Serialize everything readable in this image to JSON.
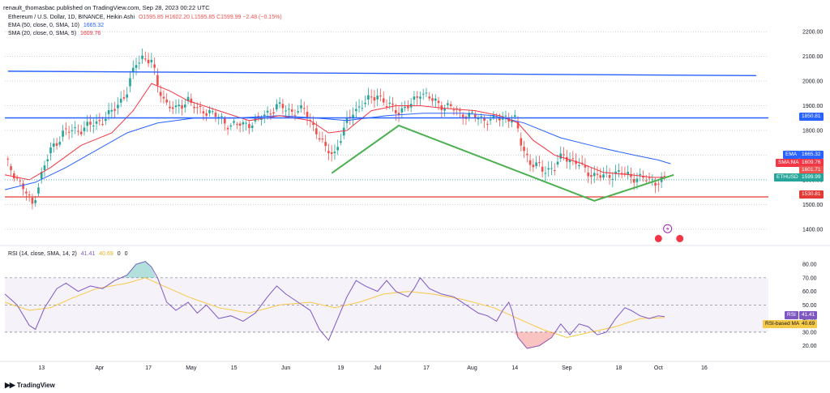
{
  "header": {
    "publisher": "renault_thomasbac published on TradingView.com, Sep 28, 2023 00:22 UTC"
  },
  "legend": {
    "main": {
      "title": "Ethereum / U.S. Dollar, 1D, BINANCE, Heikin Ashi",
      "values": "O1595.85  H1602.20  L1595.85  C1599.99  −2.48 (−0.15%)"
    },
    "ema": {
      "label": "EMA (50, close, 0, SMA, 10)",
      "value": "1665.32"
    },
    "sma": {
      "label": "SMA (20, close, 0, SMA, 5)",
      "value": "1609.76"
    },
    "rsi": {
      "label": "RSI (14, close, SMA, 14, 2)",
      "v1": "41.41",
      "v2": "40.69",
      "v3": "0",
      "v4": "0"
    }
  },
  "tags": {
    "ema_name": "EMA",
    "ema_value": "1665.32",
    "sma_name": "SMA:MA",
    "sma_value": "1609.76",
    "plain_value": "1601.71",
    "eth_name": "ETHUSD",
    "eth_value": "1599.99",
    "res_value": "1850.81",
    "sup_value": "1530.81",
    "rsi_name": "RSI",
    "rsi_value": "41.41",
    "rsima_name": "RSI-based MA",
    "rsima_value": "40.69"
  },
  "colors": {
    "up": "#26a69a",
    "down": "#ef5350",
    "ema": "#2962ff",
    "sma": "#f23645",
    "rsi": "#7e57c2",
    "rsi_ma": "#f7c948",
    "channel": "#2962ff",
    "support": "#e53935",
    "pattern": "#4caf50"
  },
  "footer": {
    "brand": "TradingView"
  },
  "chart_data": [
    {
      "type": "candlestick",
      "title": "Ethereum / U.S. Dollar, 1D, BINANCE, Heikin Ashi",
      "ylim": [
        1360,
        2230
      ],
      "y_ticks": [
        1400,
        1500,
        1600,
        1700,
        1800,
        1900,
        2000,
        2100,
        2200
      ],
      "x_ticks": [
        {
          "label": "13",
          "day": 12
        },
        {
          "label": "Apr",
          "day": 31
        },
        {
          "label": "17",
          "day": 47
        },
        {
          "label": "May",
          "day": 61
        },
        {
          "label": "15",
          "day": 75
        },
        {
          "label": "Jun",
          "day": 92
        },
        {
          "label": "19",
          "day": 110
        },
        {
          "label": "Jul",
          "day": 122
        },
        {
          "label": "17",
          "day": 138
        },
        {
          "label": "Aug",
          "day": 153
        },
        {
          "label": "14",
          "day": 167
        },
        {
          "label": "Sep",
          "day": 184
        },
        {
          "label": "18",
          "day": 201
        },
        {
          "label": "Oct",
          "day": 214
        },
        {
          "label": "16",
          "day": 229
        }
      ],
      "x_range": [
        0,
        250
      ],
      "keypoints": [
        [
          0,
          1680
        ],
        [
          4,
          1610
        ],
        [
          9,
          1500
        ],
        [
          12,
          1620
        ],
        [
          15,
          1720
        ],
        [
          19,
          1790
        ],
        [
          26,
          1810
        ],
        [
          30,
          1830
        ],
        [
          35,
          1870
        ],
        [
          40,
          1960
        ],
        [
          43,
          2070
        ],
        [
          45,
          2100
        ],
        [
          48,
          2080
        ],
        [
          50,
          1980
        ],
        [
          53,
          1910
        ],
        [
          56,
          1880
        ],
        [
          60,
          1930
        ],
        [
          63,
          1880
        ],
        [
          67,
          1880
        ],
        [
          72,
          1830
        ],
        [
          78,
          1820
        ],
        [
          84,
          1850
        ],
        [
          87,
          1880
        ],
        [
          89,
          1900
        ],
        [
          93,
          1880
        ],
        [
          98,
          1880
        ],
        [
          102,
          1800
        ],
        [
          105,
          1720
        ],
        [
          108,
          1710
        ],
        [
          111,
          1800
        ],
        [
          114,
          1880
        ],
        [
          118,
          1910
        ],
        [
          122,
          1950
        ],
        [
          125,
          1900
        ],
        [
          129,
          1880
        ],
        [
          133,
          1900
        ],
        [
          136,
          1960
        ],
        [
          140,
          1920
        ],
        [
          144,
          1900
        ],
        [
          148,
          1880
        ],
        [
          152,
          1860
        ],
        [
          156,
          1850
        ],
        [
          160,
          1840
        ],
        [
          164,
          1860
        ],
        [
          167,
          1840
        ],
        [
          169,
          1750
        ],
        [
          172,
          1670
        ],
        [
          176,
          1640
        ],
        [
          180,
          1650
        ],
        [
          183,
          1700
        ],
        [
          186,
          1680
        ],
        [
          190,
          1640
        ],
        [
          193,
          1620
        ],
        [
          196,
          1610
        ],
        [
          200,
          1630
        ],
        [
          203,
          1620
        ],
        [
          207,
          1610
        ],
        [
          210,
          1600
        ],
        [
          214,
          1595
        ],
        [
          216,
          1600
        ]
      ],
      "ema50": [
        [
          0,
          1560
        ],
        [
          10,
          1590
        ],
        [
          20,
          1650
        ],
        [
          30,
          1720
        ],
        [
          40,
          1790
        ],
        [
          50,
          1830
        ],
        [
          62,
          1850
        ],
        [
          75,
          1850
        ],
        [
          90,
          1860
        ],
        [
          102,
          1850
        ],
        [
          112,
          1840
        ],
        [
          125,
          1860
        ],
        [
          137,
          1870
        ],
        [
          150,
          1870
        ],
        [
          160,
          1860
        ],
        [
          170,
          1830
        ],
        [
          182,
          1770
        ],
        [
          195,
          1730
        ],
        [
          206,
          1700
        ],
        [
          214,
          1680
        ],
        [
          218,
          1665
        ]
      ],
      "sma20": [
        [
          0,
          1620
        ],
        [
          8,
          1600
        ],
        [
          15,
          1650
        ],
        [
          25,
          1740
        ],
        [
          35,
          1790
        ],
        [
          42,
          1880
        ],
        [
          48,
          1990
        ],
        [
          54,
          1960
        ],
        [
          60,
          1920
        ],
        [
          70,
          1880
        ],
        [
          80,
          1840
        ],
        [
          90,
          1860
        ],
        [
          100,
          1840
        ],
        [
          106,
          1790
        ],
        [
          112,
          1800
        ],
        [
          120,
          1880
        ],
        [
          128,
          1900
        ],
        [
          136,
          1900
        ],
        [
          144,
          1890
        ],
        [
          154,
          1880
        ],
        [
          162,
          1860
        ],
        [
          168,
          1830
        ],
        [
          173,
          1760
        ],
        [
          180,
          1700
        ],
        [
          188,
          1670
        ],
        [
          196,
          1630
        ],
        [
          205,
          1620
        ],
        [
          212,
          1610
        ],
        [
          216,
          1610
        ]
      ],
      "lines": {
        "channel_top": [
          [
            1,
            2040
          ],
          [
            246,
            2022
          ]
        ],
        "resistance": 1850.81,
        "support": 1530.81,
        "pattern": [
          [
            107,
            1627
          ],
          [
            129,
            1820
          ],
          [
            193,
            1515
          ],
          [
            219,
            1620
          ]
        ]
      },
      "last_close": 1599.99
    },
    {
      "type": "line",
      "title": "RSI (14, close, SMA, 14, 2)",
      "ylim": [
        12,
        86
      ],
      "y_ticks": [
        20,
        30,
        40,
        50,
        60,
        70,
        80
      ],
      "bands": [
        30,
        50,
        70
      ],
      "rsi": [
        [
          0,
          58
        ],
        [
          4,
          50
        ],
        [
          8,
          35
        ],
        [
          10,
          32
        ],
        [
          13,
          48
        ],
        [
          17,
          62
        ],
        [
          20,
          66
        ],
        [
          24,
          60
        ],
        [
          28,
          64
        ],
        [
          32,
          62
        ],
        [
          36,
          68
        ],
        [
          40,
          72
        ],
        [
          43,
          80
        ],
        [
          46,
          82
        ],
        [
          48,
          78
        ],
        [
          50,
          70
        ],
        [
          53,
          52
        ],
        [
          56,
          46
        ],
        [
          60,
          52
        ],
        [
          63,
          44
        ],
        [
          66,
          50
        ],
        [
          70,
          40
        ],
        [
          74,
          42
        ],
        [
          78,
          38
        ],
        [
          82,
          44
        ],
        [
          86,
          56
        ],
        [
          89,
          64
        ],
        [
          92,
          58
        ],
        [
          96,
          52
        ],
        [
          100,
          46
        ],
        [
          103,
          32
        ],
        [
          106,
          24
        ],
        [
          109,
          40
        ],
        [
          112,
          56
        ],
        [
          115,
          68
        ],
        [
          118,
          64
        ],
        [
          122,
          60
        ],
        [
          125,
          68
        ],
        [
          128,
          60
        ],
        [
          132,
          56
        ],
        [
          134,
          62
        ],
        [
          136,
          70
        ],
        [
          139,
          62
        ],
        [
          143,
          58
        ],
        [
          147,
          56
        ],
        [
          151,
          50
        ],
        [
          155,
          44
        ],
        [
          158,
          42
        ],
        [
          161,
          38
        ],
        [
          163,
          46
        ],
        [
          165,
          52
        ],
        [
          166,
          46
        ],
        [
          168,
          26
        ],
        [
          171,
          18
        ],
        [
          175,
          20
        ],
        [
          179,
          26
        ],
        [
          182,
          36
        ],
        [
          185,
          28
        ],
        [
          188,
          36
        ],
        [
          191,
          34
        ],
        [
          194,
          28
        ],
        [
          197,
          30
        ],
        [
          200,
          40
        ],
        [
          203,
          48
        ],
        [
          205,
          46
        ],
        [
          208,
          42
        ],
        [
          211,
          40
        ],
        [
          214,
          42
        ],
        [
          216,
          41.41
        ]
      ],
      "rsi_ma": [
        [
          0,
          52
        ],
        [
          8,
          46
        ],
        [
          15,
          48
        ],
        [
          22,
          55
        ],
        [
          30,
          62
        ],
        [
          40,
          66
        ],
        [
          46,
          70
        ],
        [
          52,
          64
        ],
        [
          60,
          56
        ],
        [
          70,
          48
        ],
        [
          80,
          44
        ],
        [
          90,
          50
        ],
        [
          100,
          52
        ],
        [
          108,
          48
        ],
        [
          116,
          52
        ],
        [
          124,
          58
        ],
        [
          132,
          60
        ],
        [
          140,
          58
        ],
        [
          150,
          54
        ],
        [
          160,
          48
        ],
        [
          168,
          40
        ],
        [
          176,
          32
        ],
        [
          184,
          26
        ],
        [
          192,
          30
        ],
        [
          200,
          34
        ],
        [
          208,
          40
        ],
        [
          216,
          40.69
        ]
      ]
    }
  ]
}
